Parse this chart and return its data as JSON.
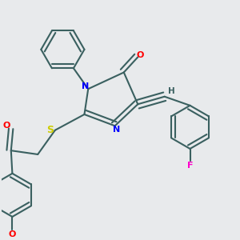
{
  "bg_color": "#e8eaec",
  "bond_color": "#3a6060",
  "bond_width": 1.5,
  "atom_colors": {
    "N": "#0000ff",
    "O": "#ff0000",
    "S": "#cccc00",
    "F": "#ff00cc",
    "H": "#3a6060",
    "C": "#3a6060"
  },
  "font_size": 8,
  "fig_width": 3.0,
  "fig_height": 3.0
}
